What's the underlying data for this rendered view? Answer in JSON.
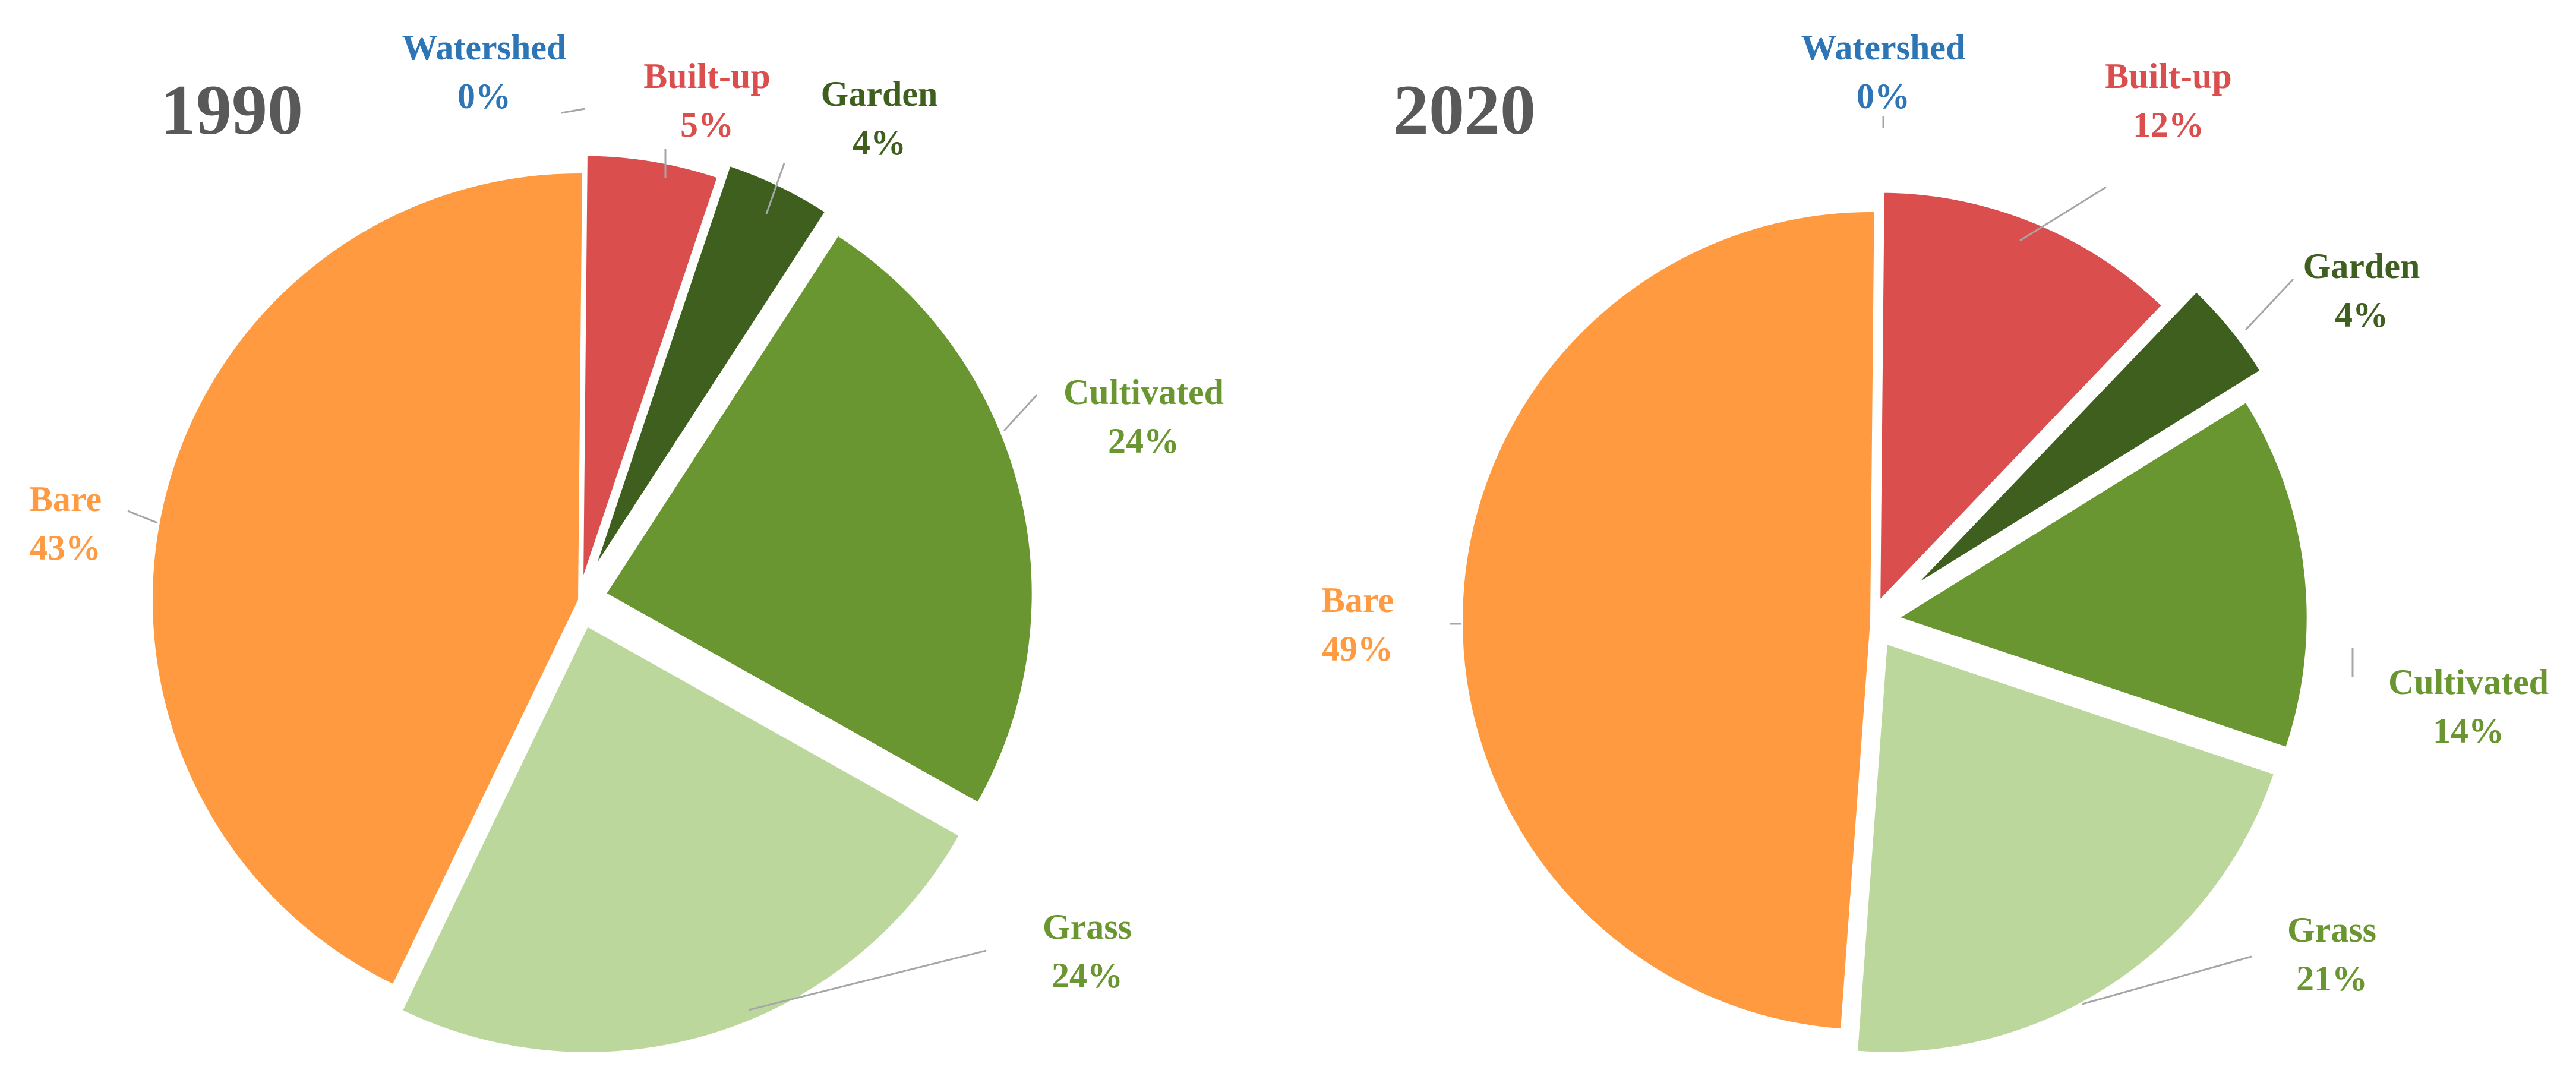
{
  "chart_data": [
    {
      "type": "pie",
      "title": "1990",
      "slices": [
        {
          "label": "Watershed",
          "value": 0,
          "display": "0%",
          "color": "#2E75B6"
        },
        {
          "label": "Built-up",
          "value": 5,
          "display": "5%",
          "color": "#DA4E4E"
        },
        {
          "label": "Garden",
          "value": 4,
          "display": "4%",
          "color": "#3E5F1E"
        },
        {
          "label": "Cultivated",
          "value": 24,
          "display": "24%",
          "color": "#6A9631"
        },
        {
          "label": "Grass",
          "value": 24,
          "display": "24%",
          "color": "#BCD79B"
        },
        {
          "label": "Bare",
          "value": 43,
          "display": "43%",
          "color": "#FF9A40"
        }
      ],
      "label_colors": {
        "Watershed": "#2E75B6",
        "Built-up": "#DA4E4E",
        "Garden": "#3E5F1E",
        "Cultivated": "#6A9631",
        "Grass": "#6A9631",
        "Bare": "#FF9A40"
      },
      "legend": "none"
    },
    {
      "type": "pie",
      "title": "2020",
      "slices": [
        {
          "label": "Watershed",
          "value": 0,
          "display": "0%",
          "color": "#2E75B6"
        },
        {
          "label": "Built-up",
          "value": 12,
          "display": "12%",
          "color": "#DA4E4E"
        },
        {
          "label": "Garden",
          "value": 4,
          "display": "4%",
          "color": "#3E5F1E"
        },
        {
          "label": "Cultivated",
          "value": 14,
          "display": "14%",
          "color": "#6A9631"
        },
        {
          "label": "Grass",
          "value": 21,
          "display": "21%",
          "color": "#BCD79B"
        },
        {
          "label": "Bare",
          "value": 49,
          "display": "49%",
          "color": "#FF9A40"
        }
      ],
      "label_colors": {
        "Watershed": "#2E75B6",
        "Built-up": "#DA4E4E",
        "Garden": "#3E5F1E",
        "Cultivated": "#6A9631",
        "Grass": "#6A9631",
        "Bare": "#FF9A40"
      },
      "legend": "none"
    }
  ]
}
